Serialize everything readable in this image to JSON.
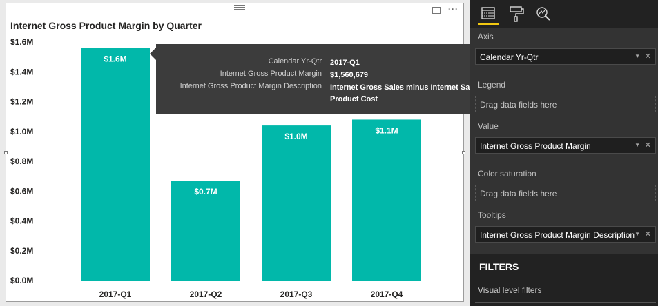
{
  "visual": {
    "title": "Internet Gross Product Margin by Quarter"
  },
  "chart_data": {
    "type": "bar",
    "title": "Internet Gross Product Margin by Quarter",
    "categories": [
      "2017-Q1",
      "2017-Q2",
      "2017-Q3",
      "2017-Q4"
    ],
    "values": [
      1560679,
      670000,
      1040000,
      1080000
    ],
    "data_labels": [
      "$1.6M",
      "$0.7M",
      "$1.0M",
      "$1.1M"
    ],
    "y_ticks": [
      "$0.0M",
      "$0.2M",
      "$0.4M",
      "$0.6M",
      "$0.8M",
      "$1.0M",
      "$1.2M",
      "$1.4M",
      "$1.6M"
    ],
    "ylim": [
      0,
      1600000
    ],
    "grid": false,
    "legend": "none",
    "bar_color": "#01b8aa"
  },
  "tooltip": {
    "rows": [
      {
        "key": "Calendar Yr-Qtr",
        "value": "2017-Q1"
      },
      {
        "key": "Internet Gross Product Margin",
        "value": "$1,560,679"
      },
      {
        "key": "Internet Gross Product Margin Description",
        "value": "Internet Gross Sales minus Internet Sales Product Cost"
      }
    ]
  },
  "pane": {
    "tabs": [
      "fields-icon",
      "format-paint-roller-icon",
      "analytics-magnifier-icon"
    ],
    "axis_label": "Axis",
    "axis_field": "Calendar Yr-Qtr",
    "legend_label": "Legend",
    "legend_placeholder": "Drag data fields here",
    "value_label": "Value",
    "value_field": "Internet Gross Product Margin",
    "color_saturation_label": "Color saturation",
    "color_saturation_placeholder": "Drag data fields here",
    "tooltips_label": "Tooltips",
    "tooltips_field": "Internet Gross Product Margin Description",
    "filters_title": "FILTERS",
    "visual_level_filters": "Visual level filters"
  },
  "colors": {
    "accent": "#01b8aa",
    "pane_bg": "#333333",
    "tab_highlight": "#f2c811"
  }
}
